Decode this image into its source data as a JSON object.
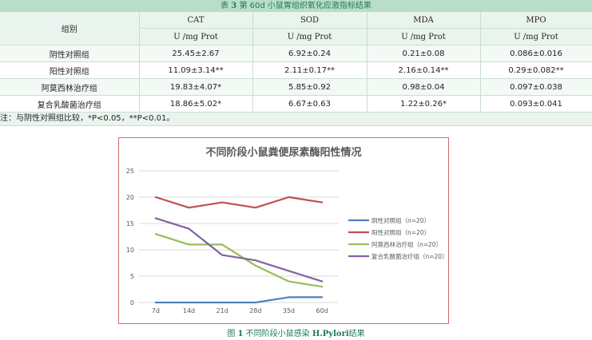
{
  "table": {
    "title_prefix": "表",
    "title_number": "3",
    "title_text": "第 60d 小鼠胃组织氧化应激指标结果",
    "group_header": "组别",
    "columns": [
      "CAT",
      "SOD",
      "MDA",
      "MPO"
    ],
    "units": [
      "U /mg Prot",
      "U /mg Prot",
      "U /mg Prot",
      "U /mg Prot"
    ],
    "rows": [
      {
        "group": "阴性对照组",
        "values": [
          "25.45±2.67",
          "6.92±0.24",
          "0.21±0.08",
          "0.086±0.016"
        ]
      },
      {
        "group": "阳性对照组",
        "values": [
          "11.09±3.14**",
          "2.11±0.17**",
          "2.16±0.14**",
          "0.29±0.082**"
        ]
      },
      {
        "group": "阿莫西林治疗组",
        "values": [
          "19.83±4.07*",
          "5.85±0.92",
          "0.98±0.04",
          "0.097±0.038"
        ]
      },
      {
        "group": "复合乳酸菌治疗组",
        "values": [
          "18.86±5.02*",
          "6.67±0.63",
          "1.22±0.26*",
          "0.093±0.041"
        ]
      }
    ],
    "note": "注：与阴性对照组比较，*P<0.05，**P<0.01。"
  },
  "chart_data": {
    "type": "line",
    "title": "不同阶段小鼠粪便尿素酶阳性情况",
    "x": [
      "7d",
      "14d",
      "21d",
      "28d",
      "35d",
      "60d"
    ],
    "ylim": [
      0,
      25
    ],
    "yticks": [
      0,
      5,
      10,
      15,
      20,
      25
    ],
    "grid": true,
    "legend": "right",
    "series": [
      {
        "name": "阴性对照组（n=20）",
        "color": "#4f81bd",
        "values": [
          0,
          0,
          0,
          0,
          1,
          1
        ]
      },
      {
        "name": "阳性对照组（n=20）",
        "color": "#c0504d",
        "values": [
          20,
          18,
          19,
          18,
          20,
          19
        ]
      },
      {
        "name": "阿莫西林治疗组（n=20）",
        "color": "#9bbb59",
        "values": [
          13,
          11,
          11,
          7,
          4,
          3
        ]
      },
      {
        "name": "复合乳酸菌治疗组（n=20）",
        "color": "#8064a2",
        "values": [
          16,
          14,
          9,
          8,
          6,
          4
        ]
      }
    ]
  },
  "figure": {
    "caption_prefix": "图",
    "caption_number": "1",
    "caption_text": "不同阶段小鼠感染",
    "caption_term": "H.Pylori",
    "caption_suffix": "结果"
  }
}
